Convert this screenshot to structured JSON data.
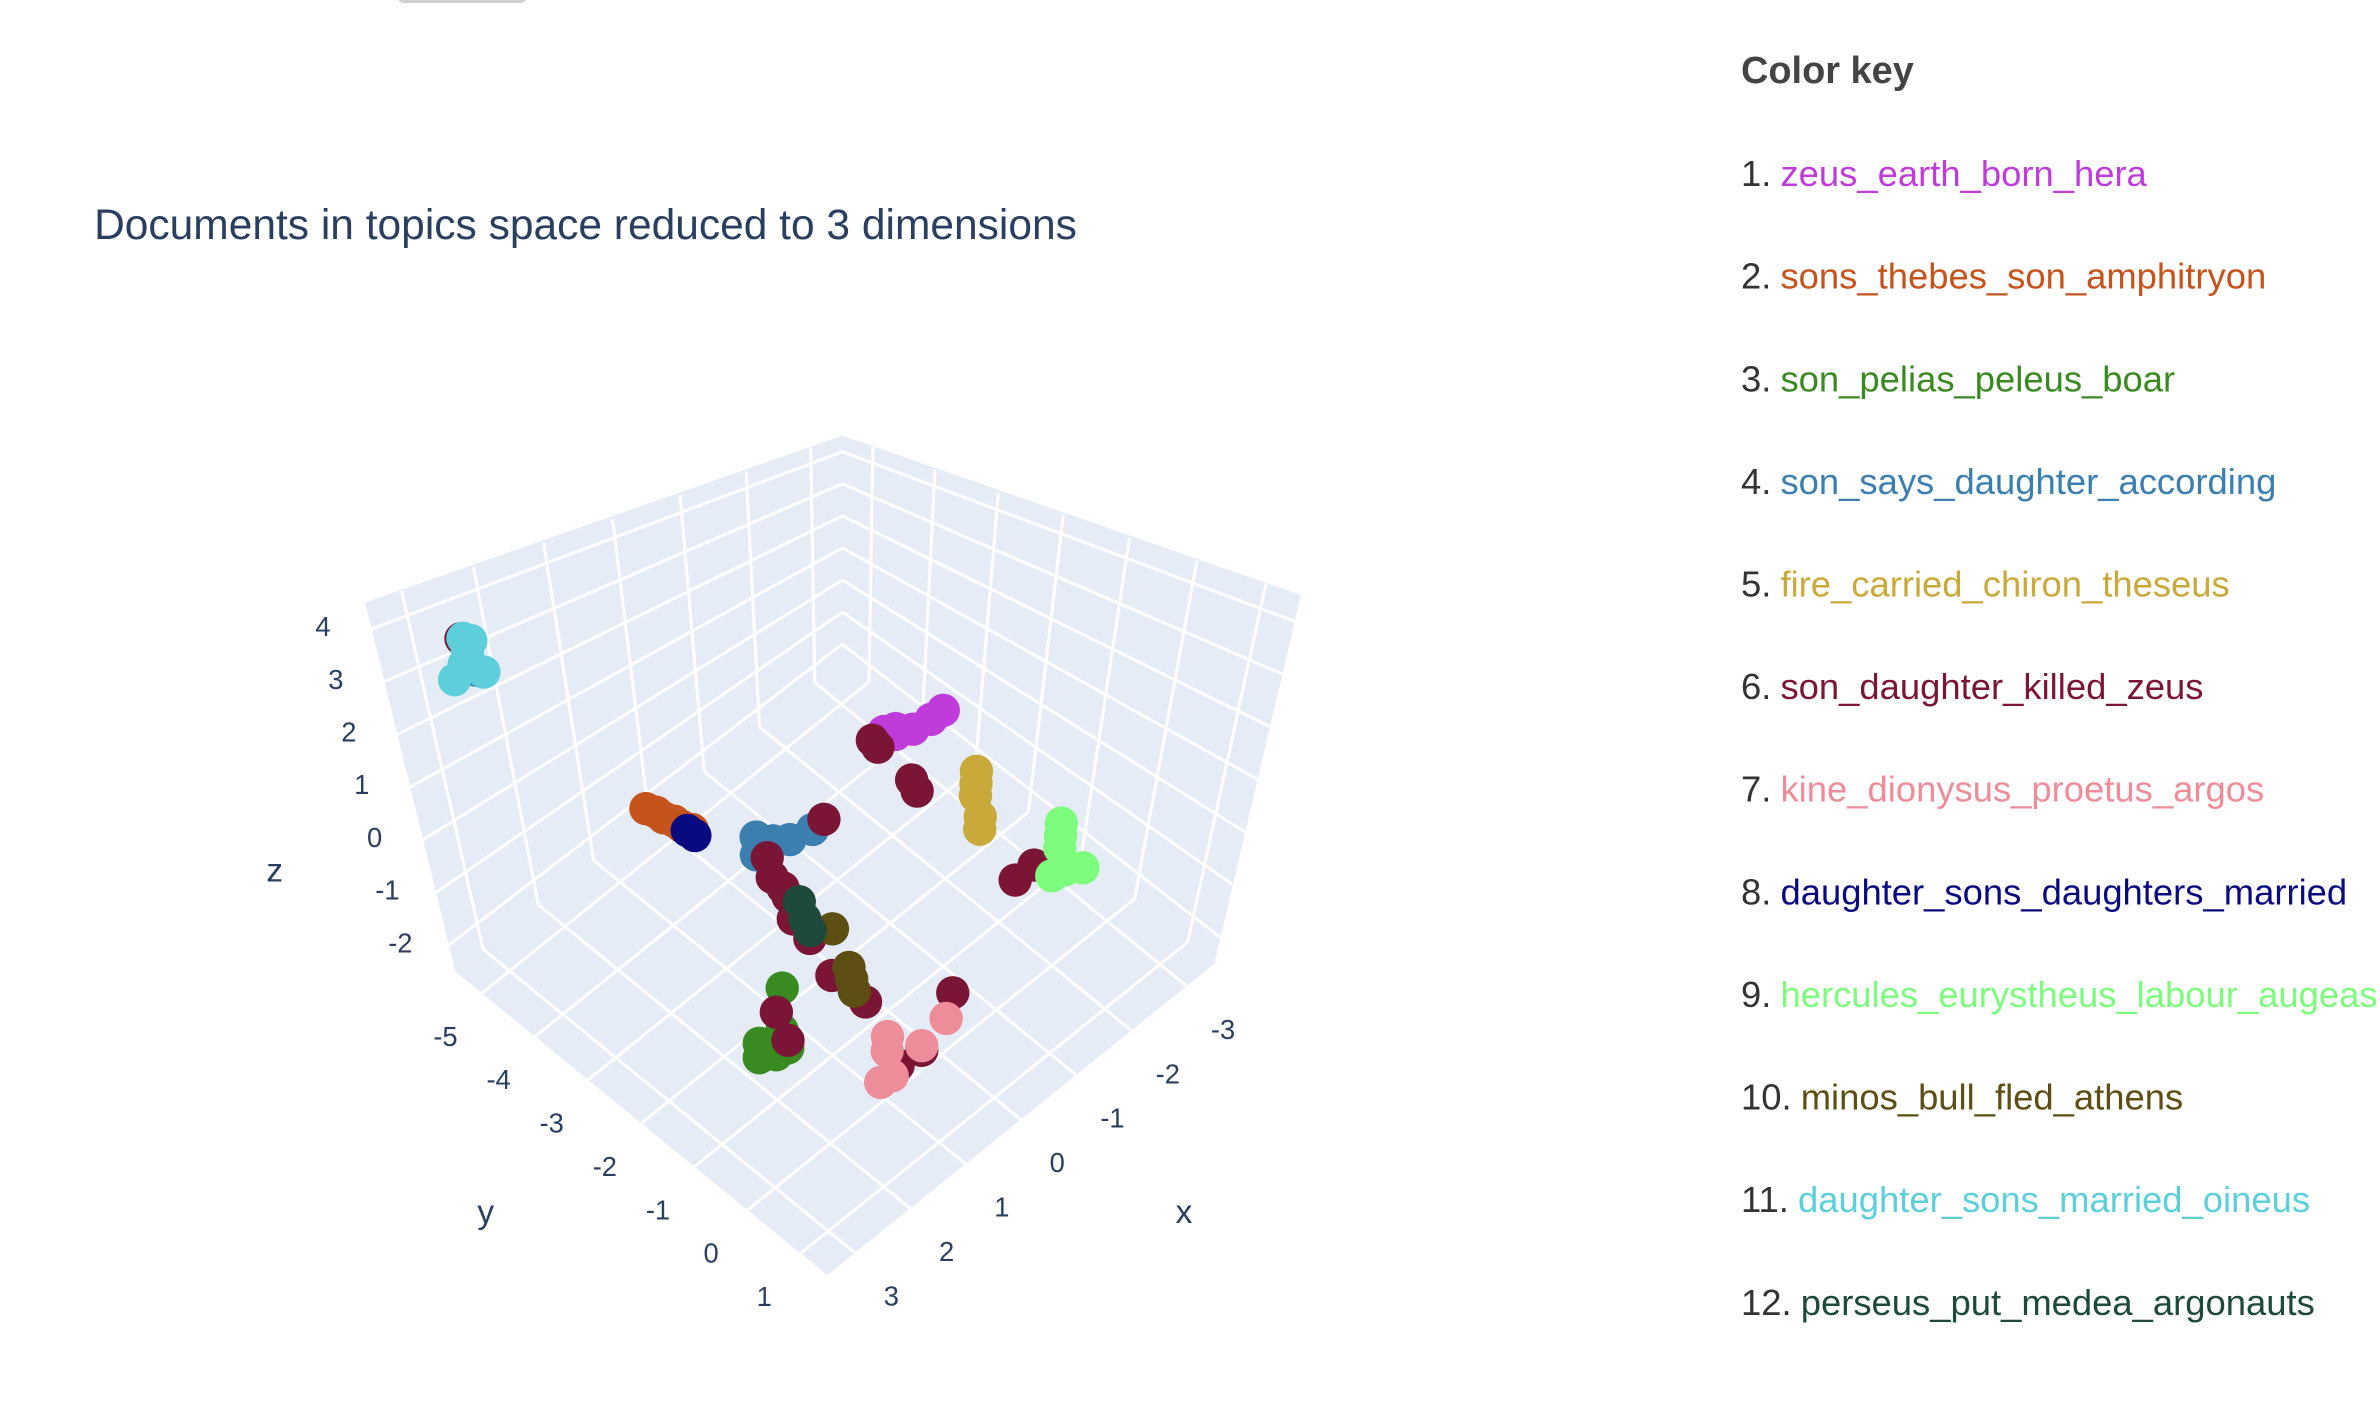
{
  "chart_data": {
    "type": "scatter3d",
    "title": "Documents in topics space reduced to 3 dimensions",
    "legend_title": "Color key",
    "xlabel": "x",
    "ylabel": "y",
    "zlabel": "z",
    "xlim": [
      -3.5,
      3.5
    ],
    "ylim": [
      -5.5,
      1.5
    ],
    "zlim": [
      -2.5,
      4.5
    ],
    "xticks": [
      -3,
      -2,
      -1,
      0,
      1,
      2,
      3
    ],
    "yticks": [
      -5,
      -4,
      -3,
      -2,
      -1,
      0,
      1
    ],
    "zticks": [
      -2,
      -1,
      0,
      1,
      2,
      3,
      4
    ],
    "grid": true,
    "series": [
      {
        "key": "1.",
        "name": "zeus_earth_born_hera",
        "color": "#c03cda",
        "x": [
          -2.1,
          -2.2,
          -2.0,
          -2.3,
          -1.9,
          -2.0
        ],
        "y": [
          -2.8,
          -2.6,
          -3.0,
          -2.5,
          -2.9,
          -3.2
        ],
        "z": [
          0,
          0.3,
          -0.2,
          0.5,
          0.1,
          -0.3
        ]
      },
      {
        "key": "2.",
        "name": "sons_thebes_son_amphitryon",
        "color": "#c5531c",
        "x": [
          0.35,
          0.35,
          0.4,
          0.4,
          0.45,
          0.45
        ],
        "y": [
          -5.1,
          -4.9,
          -4.7,
          -4.5,
          -4.3,
          -4.1
        ],
        "z": [
          -1.6,
          -1.5,
          -1.4,
          -1.3,
          -1.2,
          -1.1
        ]
      },
      {
        "key": "3.",
        "name": "son_pelias_peleus_boar",
        "color": "#3a8a22",
        "x": [
          2.8,
          2.8,
          2.9,
          2.7,
          2.6,
          2.3
        ],
        "y": [
          -0.4,
          -0.1,
          -0.3,
          0.0,
          -0.2,
          -0.5
        ],
        "z": [
          -0.7,
          -0.7,
          -0.8,
          -0.6,
          -0.5,
          -0.2
        ]
      },
      {
        "key": "4.",
        "name": "son_says_daughter_according",
        "color": "#3a7fb0",
        "x": [
          0,
          0.1,
          -0.1,
          -0.3,
          0.2,
          2.45
        ],
        "y": [
          -3.1,
          -3.3,
          -2.9,
          -2.7,
          -3.2,
          -5.2
        ],
        "z": [
          -0.9,
          -0.9,
          -0.8,
          -0.6,
          -1.1,
          2.8
        ]
      },
      {
        "key": "5.",
        "name": "fire_carried_chiron_theseus",
        "color": "#c9a93a",
        "x": [
          -1.8,
          -1.7,
          -1.9,
          -1.6,
          -2.0
        ],
        "y": [
          -1.4,
          -1.2,
          -1.5,
          -1.1,
          -1.6
        ],
        "z": [
          -0.1,
          -0.3,
          0,
          -0.4,
          0.1
        ]
      },
      {
        "key": "6.",
        "name": "son_daughter_killed_zeus",
        "color": "#7a1535",
        "x": [
          2.5,
          -1.9,
          -1.8,
          -1.6,
          -1.5,
          -1.2,
          -1.0,
          0.2,
          0.4,
          0.5,
          0.6,
          0.8,
          0.9,
          1.1,
          1.1,
          -0.4,
          1.4,
          1.3,
          0.6,
          2.5,
          2.6
        ],
        "y": [
          -5.3,
          -3.3,
          -3.1,
          -2.3,
          -2.1,
          0.2,
          0.1,
          -3.0,
          -2.7,
          -2.4,
          -2.2,
          -1.9,
          -1.5,
          -0.9,
          -0.3,
          -2.6,
          0.6,
          0.9,
          0.7,
          -0.4,
          -0.1
        ],
        "z": [
          3.4,
          -0.5,
          -0.4,
          -0.3,
          -0.3,
          0.1,
          -0.1,
          -1.0,
          -1.0,
          -0.9,
          -0.85,
          -0.9,
          -0.9,
          -1.0,
          -1.05,
          -0.4,
          -1.3,
          -0.95,
          -0.6,
          -0.4,
          -0.6
        ]
      },
      {
        "key": "7.",
        "name": "kine_dionysus_proetus_argos",
        "color": "#ee8d9a",
        "x": [
          1.4,
          1.5,
          1.3,
          1.6,
          1.2,
          0.9
        ],
        "y": [
          0.4,
          0.6,
          0.3,
          0.5,
          0.8,
          0.9
        ],
        "z": [
          -1.2,
          -1.4,
          -1.1,
          -1.5,
          -1.0,
          -0.7
        ]
      },
      {
        "key": "8.",
        "name": "daughter_sons_daughters_married",
        "color": "#0a0a80",
        "x": [
          0.45,
          0.5
        ],
        "y": [
          -4.2,
          -4.0
        ],
        "z": [
          -1.2,
          -1.1
        ]
      },
      {
        "key": "9.",
        "name": "hercules_eurystheus_labour_augeas",
        "color": "#7dfc7d",
        "x": [
          -1.4,
          -1.3,
          -1.5,
          -1.2,
          -1.4,
          -1.6
        ],
        "y": [
          0.4,
          0.6,
          0.3,
          0.5,
          0.8,
          0.2
        ],
        "z": [
          0.4,
          0.2,
          0.5,
          0.1,
          0.3,
          0.6
        ]
      },
      {
        "key": "10.",
        "name": "minos_bull_fled_athens",
        "color": "#5d4e14",
        "x": [
          1.05,
          1.0,
          1.1,
          0.8
        ],
        "y": [
          -0.6,
          -0.7,
          -0.5,
          -1.2
        ],
        "z": [
          -0.9,
          -0.8,
          -1.0,
          -0.6
        ]
      },
      {
        "key": "11.",
        "name": "daughter_sons_married_oineus",
        "color": "#5ccfdb",
        "x": [
          2.45,
          2.3,
          2.6,
          2.5,
          2.4,
          2.7
        ],
        "y": [
          -5.3,
          -5.4,
          -5.2,
          -5.0,
          -5.4,
          -5.3
        ],
        "z": [
          3.1,
          3.2,
          3.0,
          2.9,
          3.3,
          2.7
        ]
      },
      {
        "key": "12.",
        "name": "perseus_put_medea_argonauts",
        "color": "#1d4a3a",
        "x": [
          0.6,
          0.7,
          0.8
        ],
        "y": [
          -2.0,
          -1.8,
          -1.6
        ],
        "z": [
          -0.8,
          -0.9,
          -0.9
        ]
      }
    ]
  }
}
